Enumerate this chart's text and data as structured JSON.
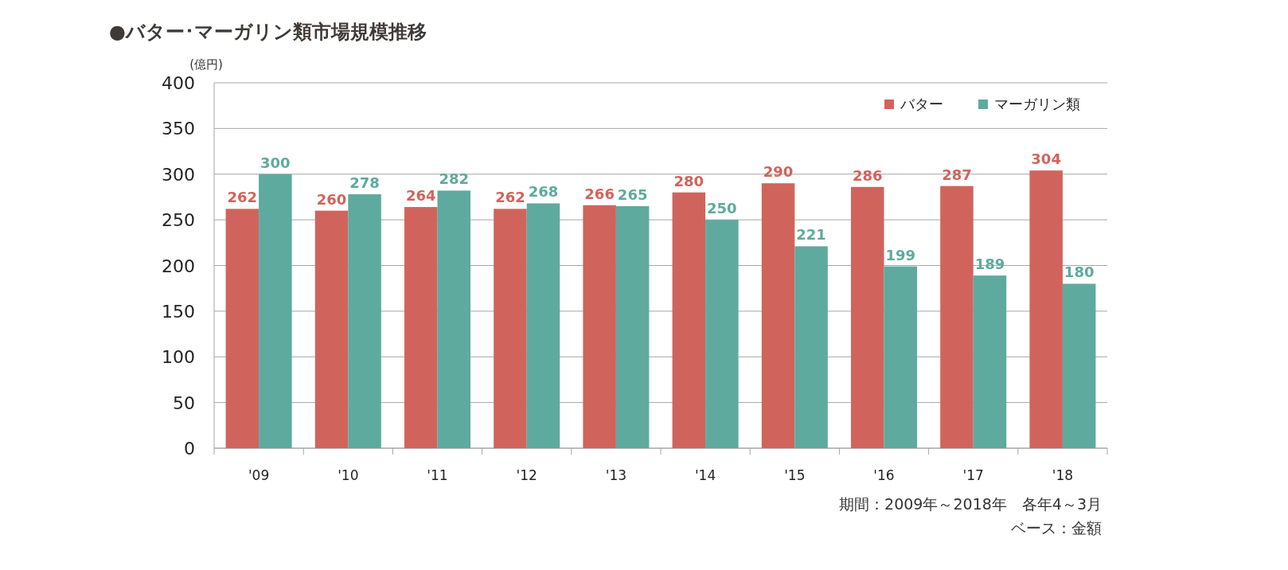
{
  "chart_data": {
    "type": "bar",
    "title": "●バター･マーガリン類市場規模推移",
    "ylabel": "(億円)",
    "categories": [
      "'09",
      "'10",
      "'11",
      "'12",
      "'13",
      "'14",
      "'15",
      "'16",
      "'17",
      "'18"
    ],
    "series": [
      {
        "name": "バター",
        "color": "#d0645c",
        "values": [
          262,
          260,
          264,
          262,
          266,
          280,
          290,
          286,
          287,
          304
        ]
      },
      {
        "name": "マーガリン類",
        "color": "#5eaa9e",
        "values": [
          300,
          278,
          282,
          268,
          265,
          250,
          221,
          199,
          189,
          180
        ]
      }
    ],
    "ylim": [
      0,
      400
    ],
    "yticks": [
      0,
      50,
      100,
      150,
      200,
      250,
      300,
      350,
      400
    ],
    "grid": "y",
    "legend": "top right",
    "data_labels": true,
    "annotations": [
      "期間：2009年～2018年　各年4～3月",
      "ベース：金額"
    ]
  }
}
